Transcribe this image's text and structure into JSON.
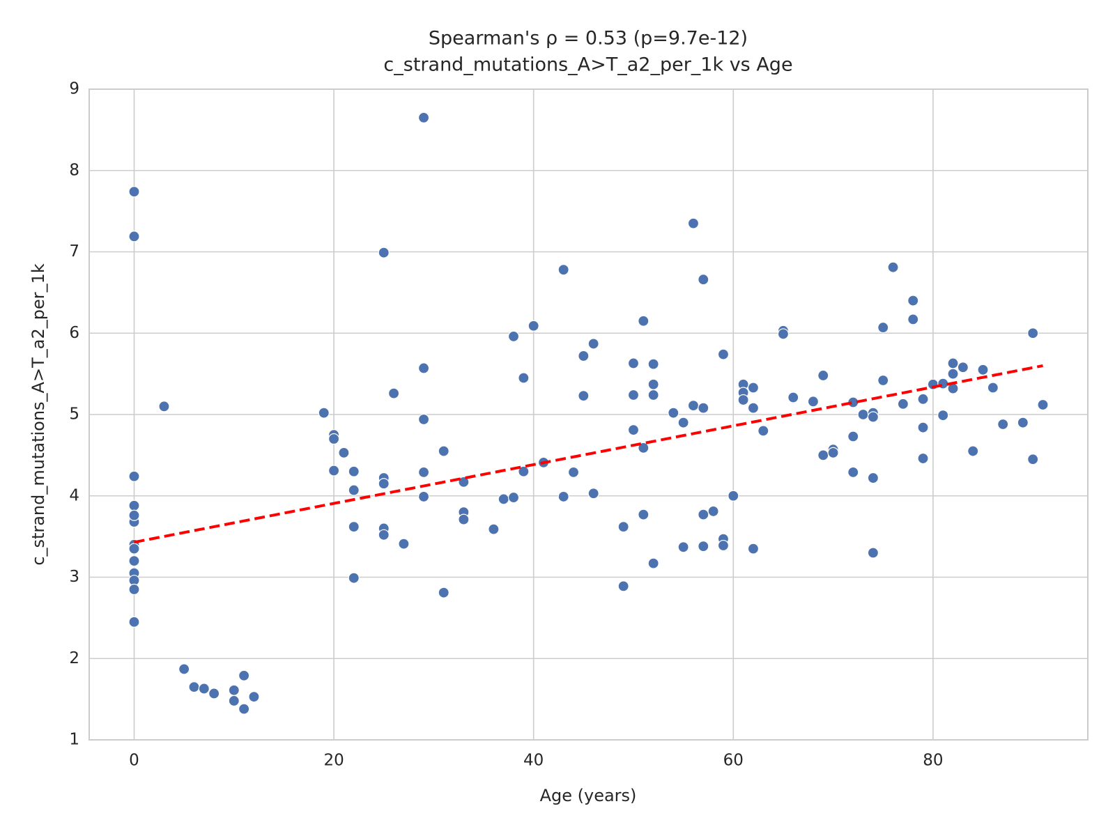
{
  "chart_data": {
    "type": "scatter",
    "title": [
      "Spearman's ρ = 0.53 (p=9.7e-12)",
      "c_strand_mutations_A>T_a2_per_1k vs Age"
    ],
    "x_label": "Age (years)",
    "y_label": "c_strand_mutations_A>T_a2_per_1k",
    "color": "#4c72b0",
    "grid": true,
    "xlim": [
      -4.5,
      95.5
    ],
    "xticks": [
      0,
      20,
      40,
      60,
      80
    ],
    "ylim": [
      1,
      9
    ],
    "yticks": [
      1,
      2,
      3,
      4,
      5,
      6,
      7,
      8,
      9
    ],
    "x": [
      0,
      0,
      0,
      0,
      0,
      0,
      0,
      0,
      0,
      0,
      0,
      0,
      0,
      3,
      5,
      6,
      6,
      7,
      8,
      10,
      10,
      11,
      11,
      12,
      19,
      20,
      20,
      20,
      21,
      22,
      22,
      22,
      22,
      25,
      25,
      25,
      25,
      25,
      26,
      27,
      29,
      29,
      29,
      29,
      29,
      31,
      31,
      33,
      33,
      33,
      36,
      37,
      38,
      38,
      39,
      39,
      40,
      41,
      43,
      43,
      44,
      45,
      45,
      46,
      46,
      49,
      49,
      50,
      50,
      50,
      51,
      51,
      51,
      52,
      52,
      52,
      52,
      54,
      55,
      55,
      56,
      56,
      57,
      57,
      57,
      57,
      58,
      59,
      59,
      59,
      60,
      61,
      61,
      61,
      62,
      62,
      62,
      63,
      65,
      65,
      66,
      68,
      69,
      69,
      70,
      70,
      72,
      72,
      72,
      73,
      74,
      74,
      74,
      74,
      75,
      75,
      76,
      77,
      78,
      78,
      79,
      79,
      79,
      80,
      81,
      81,
      82,
      82,
      82,
      83,
      84,
      85,
      86,
      87,
      89,
      90,
      90,
      91
    ],
    "y": [
      7.74,
      7.19,
      4.24,
      3.88,
      3.68,
      3.76,
      3.4,
      3.35,
      3.2,
      3.05,
      2.96,
      2.85,
      2.45,
      5.1,
      1.87,
      1.66,
      1.65,
      1.63,
      1.57,
      1.61,
      1.48,
      1.79,
      1.38,
      1.53,
      5.02,
      4.75,
      4.7,
      4.31,
      4.53,
      4.3,
      4.07,
      3.62,
      2.99,
      6.99,
      4.22,
      4.15,
      3.6,
      3.52,
      5.26,
      3.41,
      8.65,
      5.57,
      4.94,
      4.29,
      3.99,
      4.55,
      2.81,
      4.17,
      3.8,
      3.71,
      3.59,
      3.96,
      5.96,
      3.98,
      5.45,
      4.3,
      6.09,
      4.41,
      6.78,
      3.99,
      4.29,
      5.72,
      5.23,
      5.87,
      4.03,
      3.62,
      2.89,
      5.63,
      5.24,
      4.81,
      6.15,
      4.59,
      3.77,
      5.62,
      5.37,
      5.24,
      3.17,
      5.02,
      4.9,
      3.37,
      7.35,
      5.11,
      6.66,
      5.08,
      3.77,
      3.38,
      3.81,
      5.74,
      3.47,
      3.39,
      4.0,
      5.37,
      5.27,
      5.18,
      5.33,
      5.08,
      3.35,
      4.8,
      6.03,
      5.99,
      5.21,
      5.16,
      5.48,
      4.5,
      4.57,
      4.53,
      5.15,
      4.73,
      4.29,
      5.0,
      5.02,
      4.97,
      4.22,
      3.3,
      6.07,
      5.42,
      6.81,
      5.13,
      6.4,
      6.17,
      5.19,
      4.84,
      4.46,
      5.37,
      5.38,
      4.99,
      5.63,
      5.5,
      5.32,
      5.58,
      4.55,
      5.55,
      5.33,
      4.88,
      4.9,
      6.0,
      4.45,
      5.12
    ],
    "trend_line": {
      "x": [
        0,
        91
      ],
      "y": [
        3.43,
        5.6
      ],
      "color": "#ff0000"
    }
  }
}
